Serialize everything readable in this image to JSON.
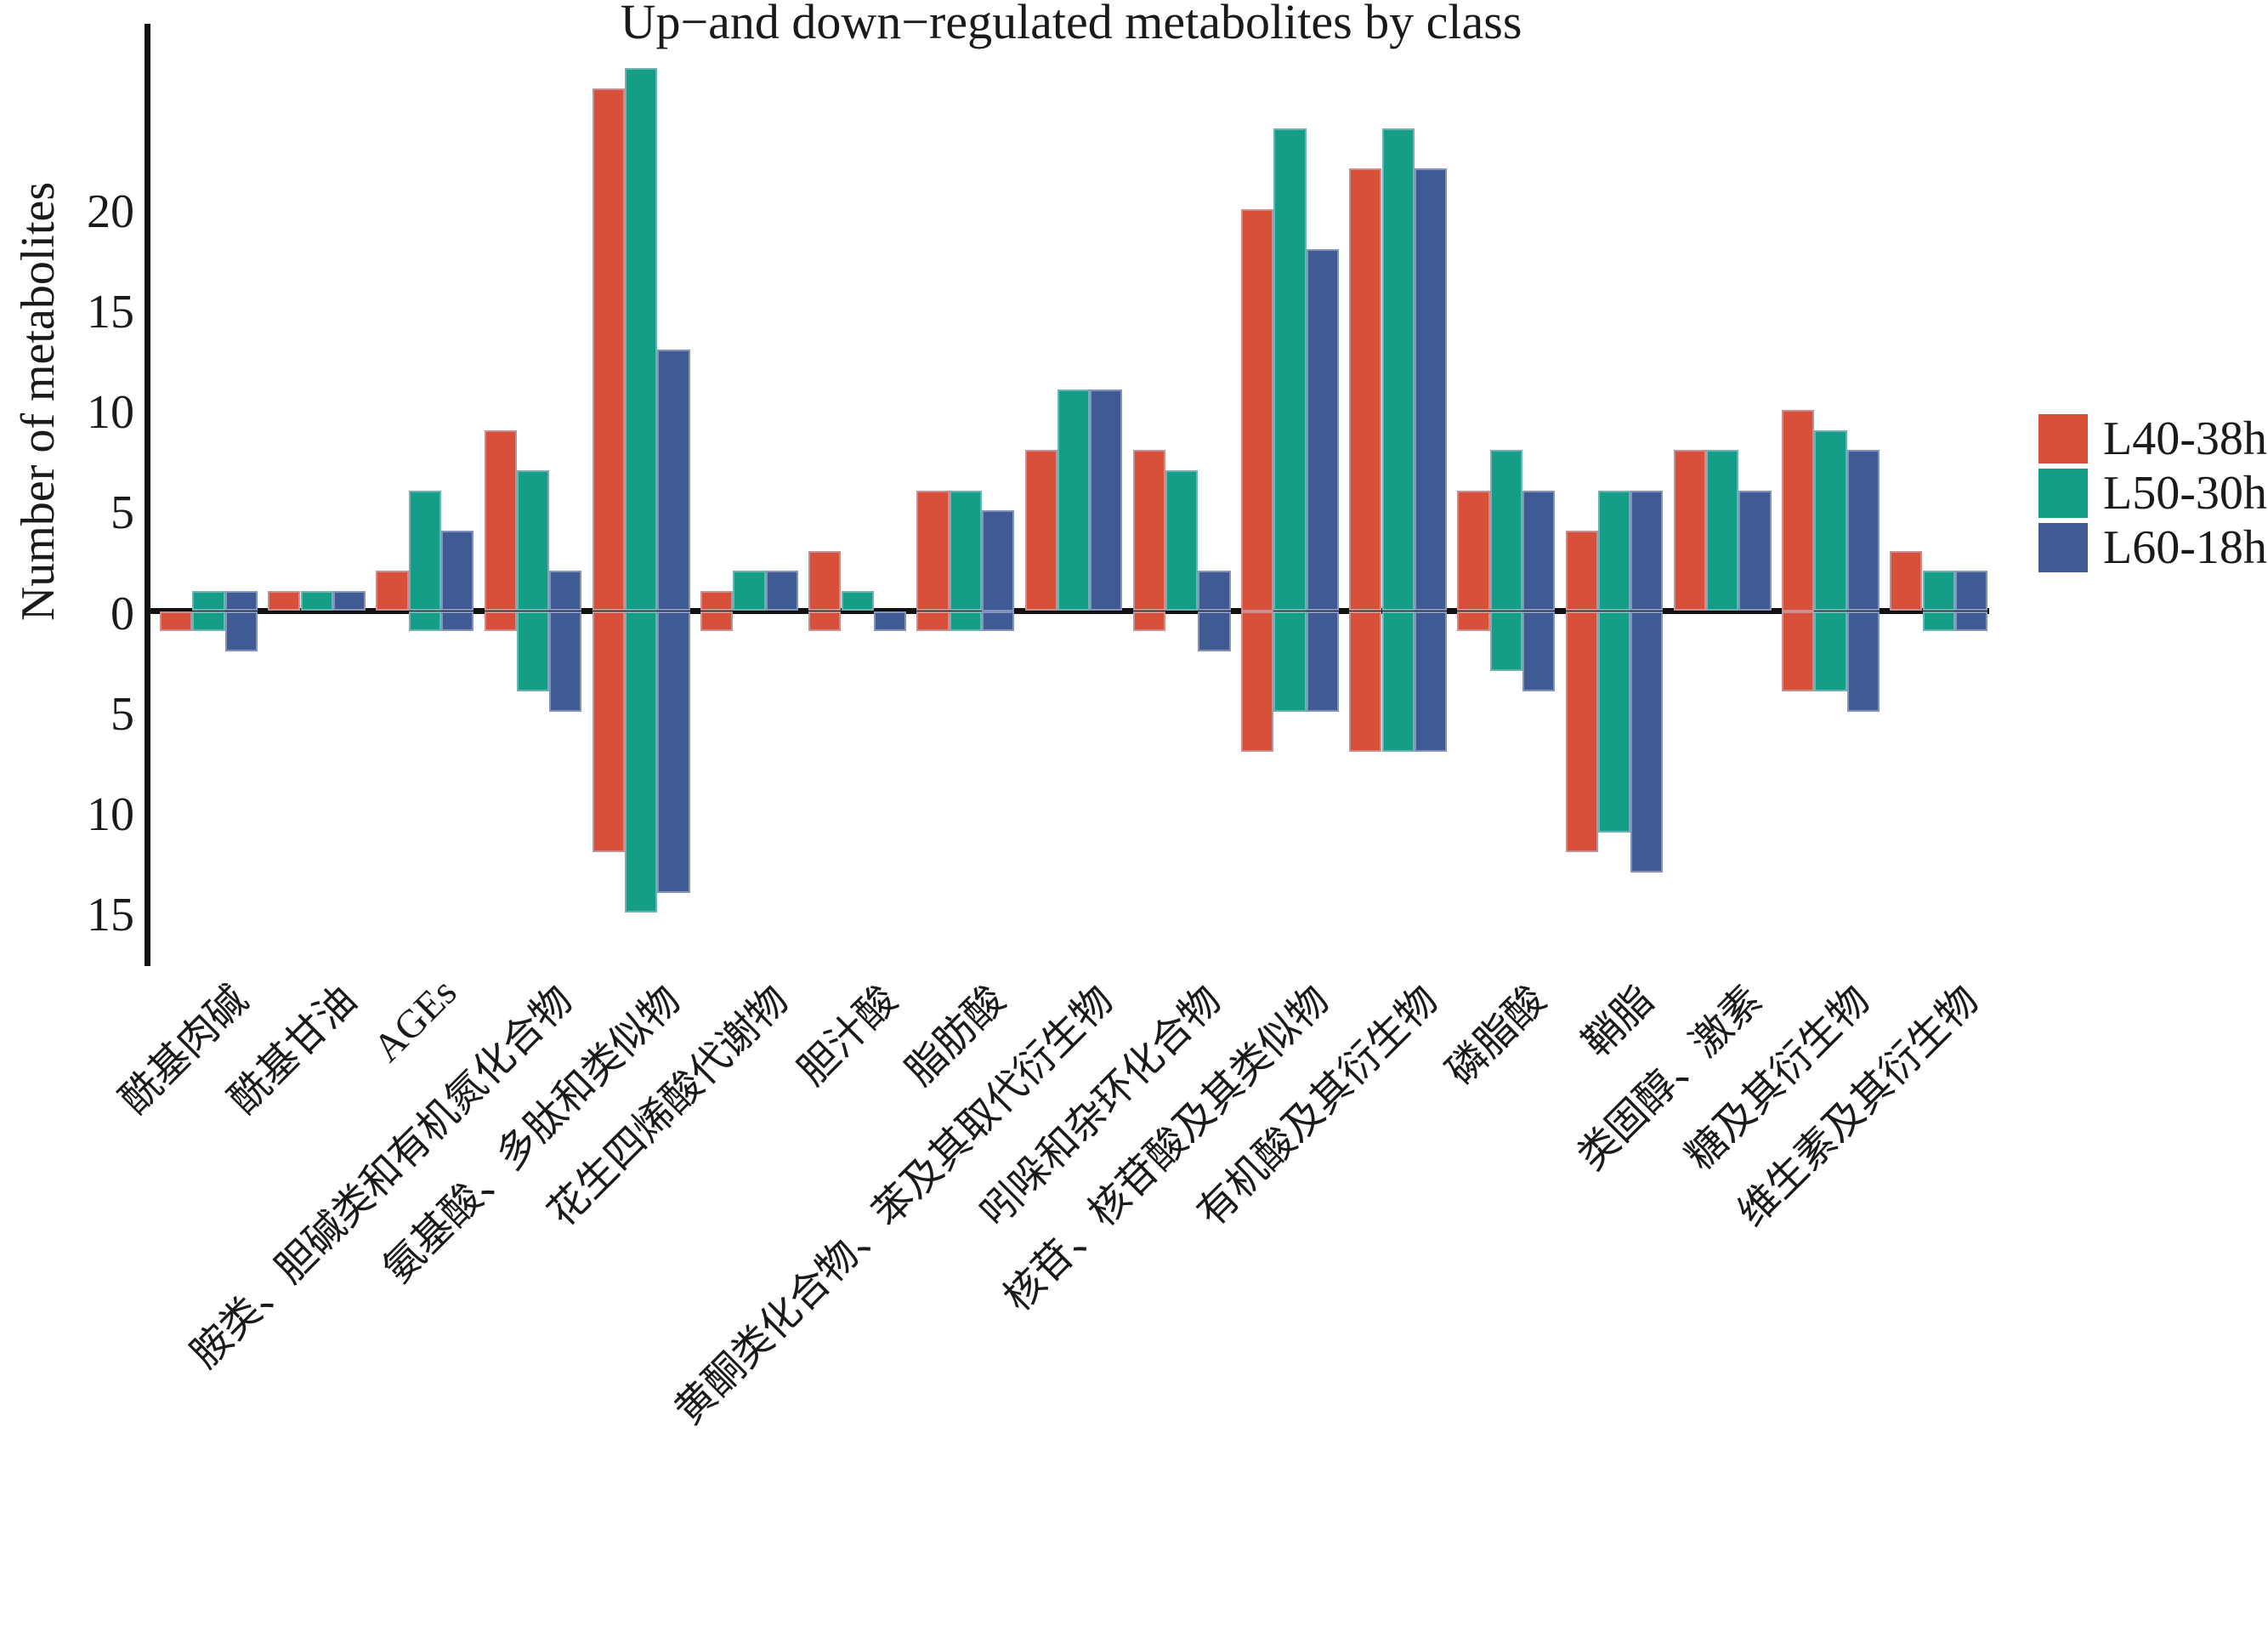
{
  "title": "Up−and down−regulated metabolites by class",
  "y_axis": {
    "label": "Number of metabolites",
    "ticks": [
      {
        "value": 20,
        "label": "20"
      },
      {
        "value": 15,
        "label": "15"
      },
      {
        "value": 10,
        "label": "10"
      },
      {
        "value": 5,
        "label": "5"
      },
      {
        "value": 0,
        "label": "0"
      },
      {
        "value": -5,
        "label": "5"
      },
      {
        "value": -10,
        "label": "10"
      },
      {
        "value": -15,
        "label": "15"
      }
    ]
  },
  "legend": {
    "position": "right",
    "items": [
      {
        "label": "L40-38h",
        "color": "#D9503A"
      },
      {
        "label": "L50-30h",
        "color": "#149E88"
      },
      {
        "label": "L60-18h",
        "color": "#405A94"
      }
    ]
  },
  "chart_data": {
    "type": "bar",
    "subtype": "diverging-grouped",
    "title": "Up−and down−regulated metabolites by class",
    "xlabel": "",
    "ylabel": "Number of metabolites",
    "ylim": [
      -16,
      29
    ],
    "grid": false,
    "categories": [
      "酰基肉碱",
      "酰基甘油",
      "AGEs",
      "胺类、胆碱类和有机氮化合物",
      "氨基酸、多肽和类似物",
      "花生四烯酸代谢物",
      "胆汁酸",
      "脂肪酸",
      "黄酮类化合物、苯及其取代衍生物",
      "吲哚和杂环化合物",
      "核苷、核苷酸及其类似物",
      "有机酸及其衍生物",
      "磷脂酸",
      "鞘脂",
      "类固醇、激素",
      "糖及其衍生物",
      "维生素及其衍生物"
    ],
    "series": [
      {
        "name": "L40-38h",
        "color": "#D9503A",
        "up": [
          0,
          1,
          2,
          9,
          26,
          1,
          3,
          6,
          8,
          8,
          20,
          22,
          6,
          4,
          8,
          10,
          3
        ],
        "down": [
          1,
          0,
          0,
          1,
          12,
          1,
          1,
          1,
          0,
          1,
          7,
          7,
          1,
          12,
          0,
          4,
          0
        ]
      },
      {
        "name": "L50-30h",
        "color": "#149E88",
        "up": [
          1,
          1,
          6,
          7,
          27,
          2,
          1,
          6,
          11,
          7,
          24,
          24,
          8,
          6,
          8,
          9,
          2
        ],
        "down": [
          1,
          0,
          1,
          4,
          15,
          0,
          0,
          1,
          0,
          0,
          5,
          7,
          3,
          11,
          0,
          4,
          1
        ]
      },
      {
        "name": "L60-18h",
        "color": "#405A94",
        "up": [
          1,
          1,
          4,
          2,
          13,
          2,
          0,
          5,
          11,
          2,
          18,
          22,
          6,
          6,
          6,
          8,
          2
        ],
        "down": [
          2,
          0,
          1,
          5,
          14,
          0,
          1,
          1,
          0,
          2,
          5,
          7,
          4,
          13,
          0,
          5,
          1
        ]
      }
    ]
  }
}
